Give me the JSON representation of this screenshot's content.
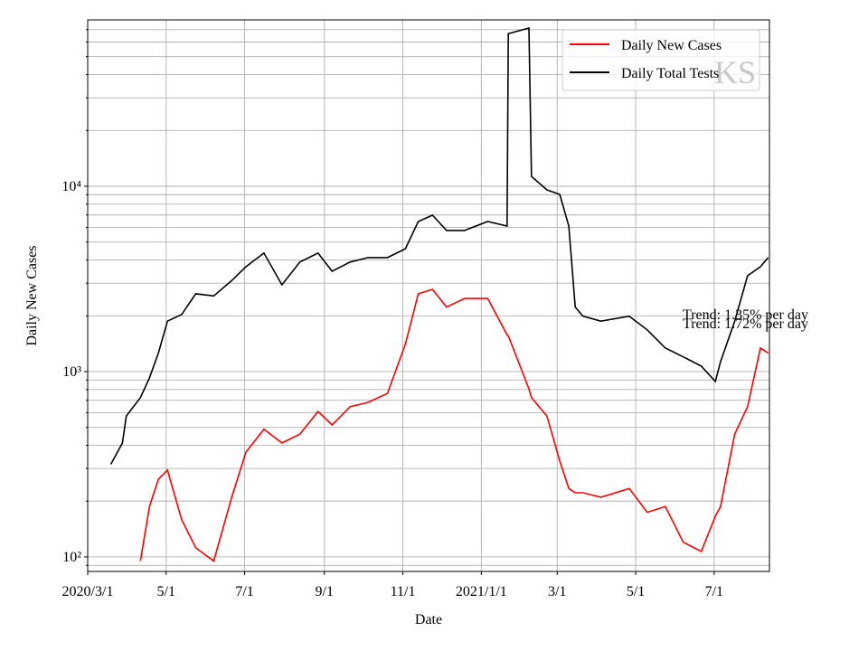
{
  "chart_data": {
    "type": "line",
    "xlabel": "Date",
    "ylabel": "Daily New Cases",
    "log_y": true,
    "grid": true,
    "legend": "upper right",
    "watermark": "KS",
    "x": [
      "2020-03-19",
      "2020-03-28",
      "2020-03-31",
      "2020-04-11",
      "2020-04-18",
      "2020-04-25",
      "2020-05-02",
      "2020-05-13",
      "2020-05-24",
      "2020-06-07",
      "2020-06-21",
      "2020-07-02",
      "2020-07-16",
      "2020-07-30",
      "2020-08-13",
      "2020-08-27",
      "2020-09-07",
      "2020-09-21",
      "2020-10-05",
      "2020-10-20",
      "2020-11-03",
      "2020-11-13",
      "2020-11-24",
      "2020-12-05",
      "2020-12-19",
      "2021-01-06",
      "2021-01-21",
      "2021-01-22",
      "2021-02-07",
      "2021-02-09",
      "2021-02-21",
      "2021-03-03",
      "2021-03-10",
      "2021-03-15",
      "2021-03-21",
      "2021-04-04",
      "2021-04-26",
      "2021-05-10",
      "2021-05-24",
      "2021-06-07",
      "2021-06-21",
      "2021-07-02",
      "2021-07-06",
      "2021-07-17",
      "2021-07-27",
      "2021-08-06",
      "2021-08-12"
    ],
    "series": [
      {
        "name": "Daily New Cases",
        "color": "#ff0000",
        "values": [
          null,
          null,
          null,
          95,
          187,
          263,
          294,
          159,
          112,
          95,
          210,
          368,
          489,
          412,
          460,
          609,
          515,
          646,
          682,
          763,
          1410,
          2630,
          2780,
          2230,
          2480,
          2480,
          1580,
          1560,
          807,
          724,
          575,
          329,
          234,
          222,
          222,
          210,
          234,
          174,
          187,
          120,
          107,
          166,
          187,
          460,
          646,
          1340,
          1260
        ]
      },
      {
        "name": "Daily Total Tests",
        "color": "#000000",
        "values": [
          316,
          412,
          575,
          724,
          925,
          1260,
          1870,
          2030,
          2630,
          2560,
          3100,
          3680,
          4360,
          2940,
          3900,
          4360,
          3480,
          3900,
          4120,
          4120,
          4600,
          6450,
          6980,
          5770,
          5770,
          6450,
          6100,
          66600,
          71400,
          11300,
          9560,
          9040,
          6100,
          2230,
          1990,
          1870,
          1990,
          1680,
          1340,
          1200,
          1070,
          884,
          1130,
          1870,
          3290,
          3680,
          4120
        ]
      }
    ],
    "annotations": [
      "Trend: 1.35% per day",
      "Trend: 1.72% per day"
    ],
    "xlim": [
      "2020-03-01",
      "2021-08-13"
    ],
    "xticks": [
      {
        "value": "2020-03-01",
        "label": "2020/3/1"
      },
      {
        "value": "2020-05-01",
        "label": "5/1"
      },
      {
        "value": "2020-07-01",
        "label": "7/1"
      },
      {
        "value": "2020-09-01",
        "label": "9/1"
      },
      {
        "value": "2020-11-01",
        "label": "11/1"
      },
      {
        "value": "2021-01-01",
        "label": "2021/1/1"
      },
      {
        "value": "2021-03-01",
        "label": "3/1"
      },
      {
        "value": "2021-05-01",
        "label": "5/1"
      },
      {
        "value": "2021-07-01",
        "label": "7/1"
      }
    ],
    "ylim": [
      83.5,
      79000
    ],
    "yticks": [
      {
        "value": 100,
        "label": "10²"
      },
      {
        "value": 1000,
        "label": "10³"
      },
      {
        "value": 10000,
        "label": "10⁴"
      }
    ],
    "yminorticks": [
      90,
      200,
      300,
      400,
      500,
      600,
      700,
      800,
      900,
      2000,
      3000,
      4000,
      5000,
      6000,
      7000,
      8000,
      9000,
      20000,
      30000,
      40000,
      50000,
      60000,
      70000
    ]
  }
}
